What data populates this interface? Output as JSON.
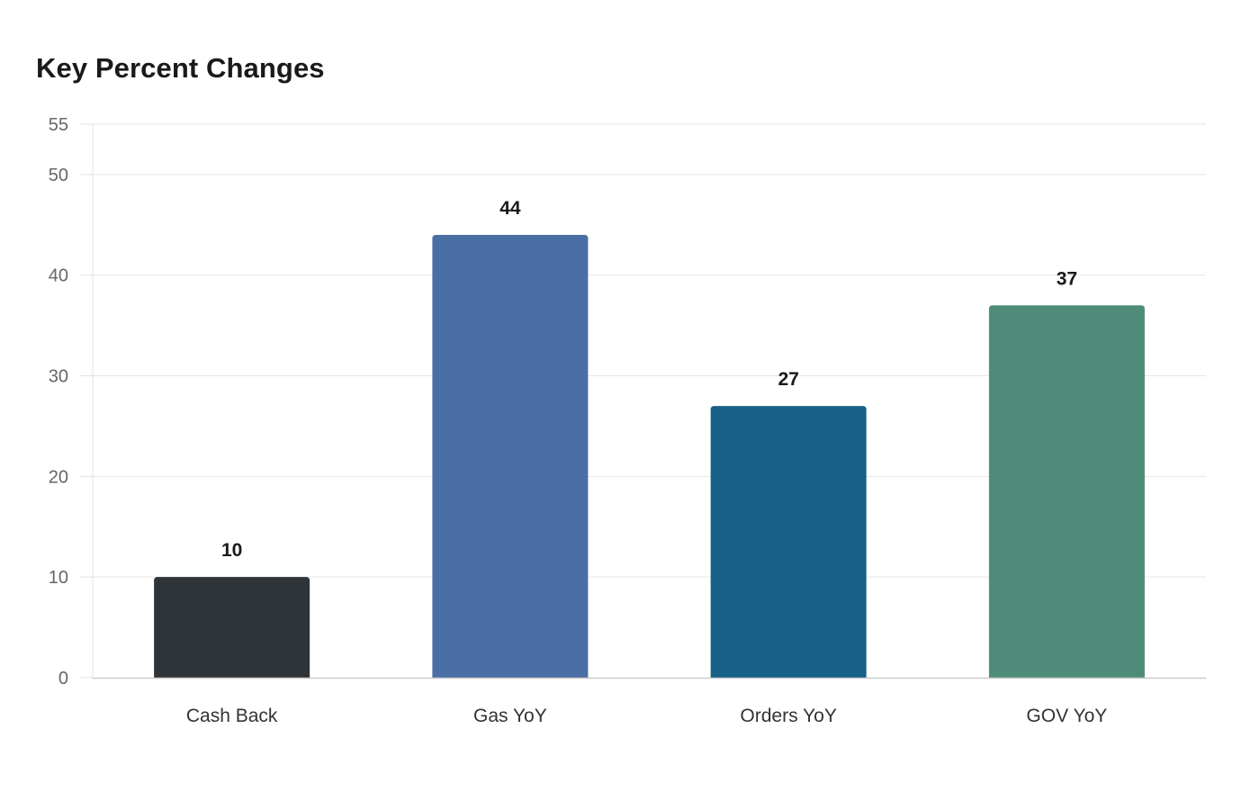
{
  "chart_data": {
    "type": "bar",
    "title": "Key Percent Changes",
    "xlabel": "",
    "ylabel": "",
    "categories": [
      "Cash Back",
      "Gas YoY",
      "Orders YoY",
      "GOV YoY"
    ],
    "values": [
      10,
      44,
      27,
      37
    ],
    "colors": [
      "#2e3438",
      "#4a6fa5",
      "#176087",
      "#4e8c79"
    ],
    "ylim": [
      0,
      55
    ],
    "yticks": [
      0,
      10,
      20,
      30,
      40,
      50,
      55
    ],
    "grid": true,
    "legend": "none",
    "data_labels": true
  }
}
